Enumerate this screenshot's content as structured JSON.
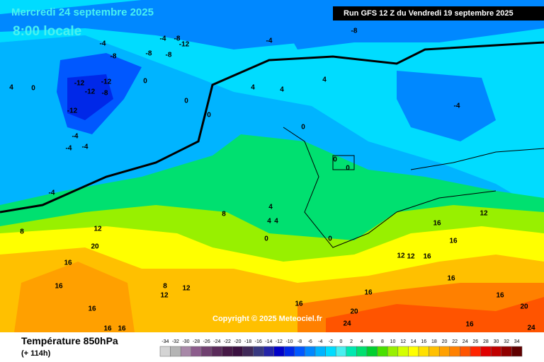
{
  "header": {
    "date": "Mercredi 24 septembre 2025",
    "time": "8:00 locale",
    "run": "Run GFS 12 Z du Vendredi 19 septembre 2025"
  },
  "copyright": "Copyright © 2025 Meteociel.fr",
  "footer": {
    "title": "Température 850hPa",
    "lead": "(+ 114h)"
  },
  "legend": {
    "values": [
      -34,
      -32,
      -30,
      -28,
      -26,
      -24,
      -22,
      -20,
      -18,
      -16,
      -14,
      -12,
      -10,
      -8,
      -6,
      -4,
      -2,
      0,
      2,
      4,
      6,
      8,
      10,
      12,
      14,
      16,
      18,
      20,
      22,
      24,
      26,
      28,
      30,
      32,
      34
    ],
    "colors": [
      "#d4d4d4",
      "#b4b4b4",
      "#a888a8",
      "#8c5c8c",
      "#704070",
      "#5a2a5a",
      "#461846",
      "#3a1040",
      "#402858",
      "#383880",
      "#2424a8",
      "#0000c8",
      "#0028e8",
      "#0058ff",
      "#0088ff",
      "#00b4ff",
      "#00dcff",
      "#48f0f0",
      "#00e8b0",
      "#00e070",
      "#00d030",
      "#48e000",
      "#98f000",
      "#d4ff00",
      "#ffff00",
      "#ffe000",
      "#ffc000",
      "#ffa000",
      "#ff8000",
      "#ff5400",
      "#ff2400",
      "#e00000",
      "#c00000",
      "#900000",
      "#600000"
    ]
  },
  "map_labels": [
    -8,
    -4,
    -4,
    -8,
    -12,
    -8,
    -8,
    -8,
    -4,
    -12,
    -12,
    -12,
    -8,
    -12,
    -4,
    -4,
    -4,
    4,
    0,
    0,
    0,
    0,
    4,
    4,
    4,
    0,
    0,
    0,
    -4,
    -4,
    8,
    4,
    4,
    4,
    0,
    0,
    12,
    20,
    16,
    16,
    16,
    16,
    16,
    8,
    12,
    12,
    12,
    16,
    16,
    12,
    12,
    16,
    16,
    16,
    16,
    16,
    20,
    24,
    16,
    20,
    24,
    8
  ]
}
